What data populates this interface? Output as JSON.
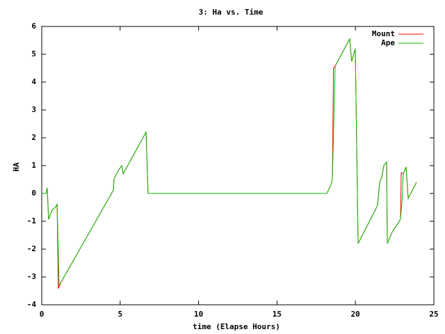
{
  "chart_data": {
    "type": "line",
    "title": "3: Ha vs. Time",
    "x_label": "time (Elapse Hours)",
    "y_label": "HA",
    "xlim": [
      0,
      25
    ],
    "ylim": [
      -4,
      6
    ],
    "xticks": [
      0,
      5,
      10,
      15,
      20,
      25
    ],
    "yticks": [
      -4,
      -3,
      -2,
      -1,
      0,
      1,
      2,
      3,
      4,
      5,
      6
    ],
    "legend": "upper right",
    "series": [
      {
        "name": "Mount",
        "color": "#ff0000",
        "x": [
          0,
          0.27,
          0.35,
          0.44,
          0.66,
          0.89,
          0.98,
          1.06,
          1.24,
          4.57,
          4.61,
          4.88,
          5.1,
          5.19,
          6.65,
          6.78,
          18.17,
          18.4,
          18.53,
          18.6,
          18.71,
          19.63,
          19.76,
          19.99,
          20.17,
          21.41,
          21.54,
          21.68,
          21.81,
          21.99,
          22.03,
          22.3,
          22.87,
          22.92,
          23.05,
          23.23,
          23.36,
          23.89
        ],
        "values": [
          0,
          0,
          0.2,
          -0.93,
          -0.6,
          -0.48,
          -0.38,
          -3.42,
          -3.18,
          0.12,
          0.52,
          0.82,
          1.0,
          0.7,
          2.2,
          0,
          0,
          0.25,
          0.5,
          4.5,
          4.58,
          5.55,
          4.75,
          5.2,
          -1.8,
          -0.43,
          0.4,
          0.58,
          1.0,
          1.13,
          -1.8,
          -1.43,
          -0.93,
          0.75,
          0.7,
          0.95,
          -0.18,
          0.4
        ]
      },
      {
        "name": "Ape",
        "color": "#00c000",
        "x": [
          0,
          0.27,
          0.35,
          0.44,
          0.66,
          0.89,
          0.98,
          1.11,
          1.24,
          4.57,
          4.61,
          4.88,
          5.1,
          5.19,
          6.65,
          6.78,
          18.17,
          18.4,
          18.53,
          18.7,
          18.71,
          19.63,
          19.76,
          19.99,
          20.17,
          21.41,
          21.54,
          21.68,
          21.81,
          21.99,
          22.03,
          22.3,
          22.87,
          22.96,
          23.05,
          23.23,
          23.36,
          23.89
        ],
        "values": [
          0,
          0,
          0.2,
          -0.93,
          -0.6,
          -0.48,
          -0.38,
          -3.3,
          -3.18,
          0.12,
          0.52,
          0.82,
          1.0,
          0.7,
          2.2,
          0,
          0,
          0.25,
          0.5,
          4.4,
          4.58,
          5.55,
          4.75,
          5.2,
          -1.8,
          -0.43,
          0.4,
          0.58,
          1.0,
          1.13,
          -1.8,
          -1.43,
          -0.93,
          -0.35,
          0.7,
          0.95,
          -0.18,
          0.4
        ]
      }
    ]
  }
}
